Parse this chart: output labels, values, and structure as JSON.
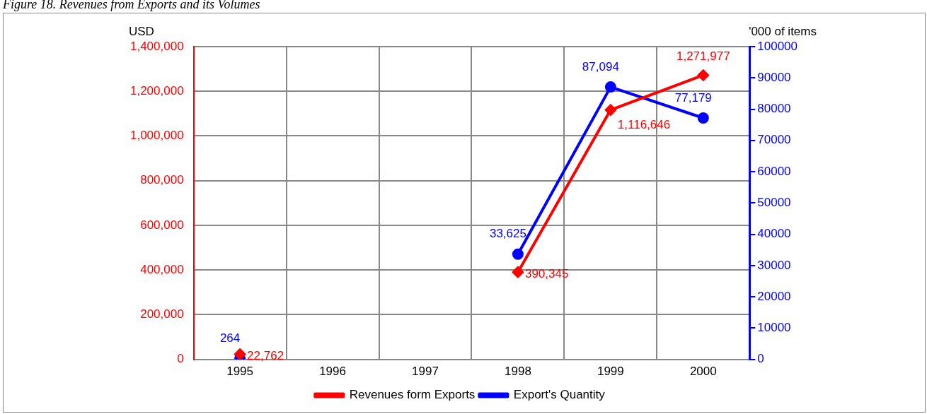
{
  "chart_data": {
    "type": "line",
    "title": "Figure 18. Revenues from Exports and its Volumes",
    "ylabel": "USD",
    "y2label": "'000 of items",
    "categories": [
      "1995",
      "1996",
      "1997",
      "1998",
      "1999",
      "2000"
    ],
    "series": [
      {
        "name": "Revenues form Exports",
        "color": "#ff0000",
        "marker": "diamond",
        "values": [
          22762,
          null,
          null,
          390345,
          1116646,
          1271977
        ],
        "value_labels": [
          "22,762",
          null,
          null,
          "390,345",
          "1,116,646",
          "1,271,977"
        ]
      },
      {
        "name": "Export's Quantity",
        "color": "#0000ff",
        "marker": "circle",
        "axis": "y2",
        "values": [
          264,
          null,
          null,
          33625,
          87094,
          77179
        ],
        "value_labels": [
          "264",
          null,
          null,
          "33,625",
          "87,094",
          "77,179"
        ]
      }
    ],
    "ylim": [
      0,
      1400000
    ],
    "yticks": [
      0,
      {
        "value": 200000,
        "label": "200,000"
      },
      {
        "value": 400000,
        "label": "400,000"
      },
      {
        "value": 600000,
        "label": "600,000"
      },
      {
        "value": 800000,
        "label": "800,000"
      },
      {
        "value": 1000000,
        "label": "1,000,000"
      },
      {
        "value": 1200000,
        "label": "1,200,000"
      },
      {
        "value": 1400000,
        "label": "1,400,000"
      }
    ],
    "y2lim": [
      0,
      100000
    ],
    "y2ticks": [
      0,
      10000,
      20000,
      30000,
      40000,
      50000,
      60000,
      70000,
      80000,
      90000,
      100000
    ],
    "grid": true,
    "legend": "bottom",
    "line_style": "solid"
  }
}
